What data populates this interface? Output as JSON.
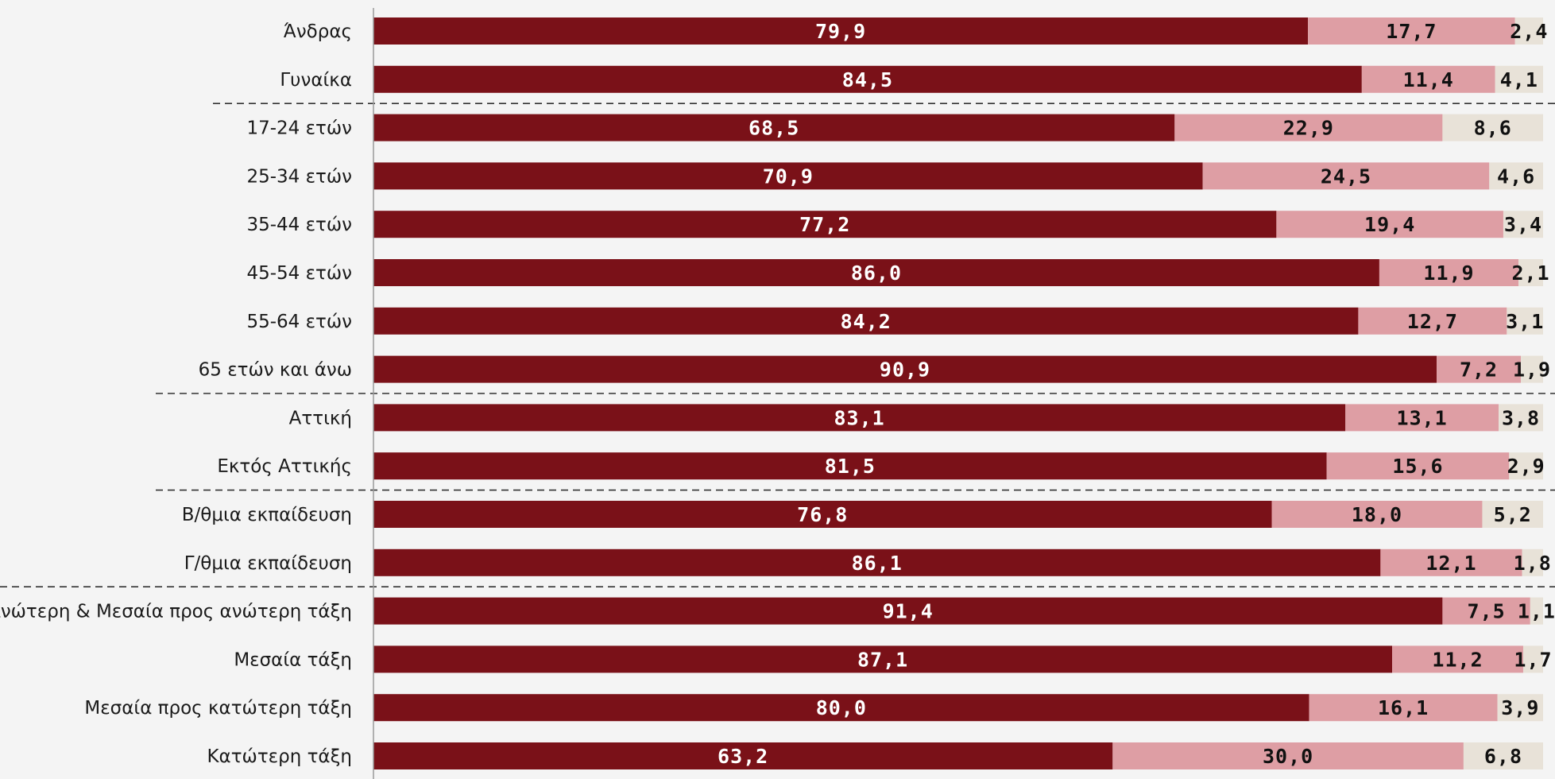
{
  "colors": {
    "background": "#f4f4f4",
    "series_colors": [
      "#7a1118",
      "#de9ea4",
      "#e8e2d8"
    ],
    "label_colors": [
      "#ffffff",
      "#111111",
      "#111111"
    ],
    "axis": "#9a9a9a",
    "separator": "#333333"
  },
  "chart_data": {
    "type": "bar",
    "orientation": "horizontal",
    "stacked": true,
    "xlim": [
      0,
      100
    ],
    "title": "",
    "xlabel": "",
    "ylabel": "",
    "grid": false,
    "legend": "none",
    "categories": [
      "Άνδρας",
      "Γυναίκα",
      "17-24 ετών",
      "25-34 ετών",
      "35-44 ετών",
      "45-54 ετών",
      "55-64 ετών",
      "65 ετών και άνω",
      "Αττική",
      "Εκτός Αττικής",
      "Β/θμια εκπαίδευση",
      "Γ/θμια εκπαίδευση",
      "Ανώτερη & Μεσαία προς ανώτερη τάξη",
      "Μεσαία τάξη",
      "Μεσαία προς κατώτερη τάξη",
      "Κατώτερη τάξη"
    ],
    "series": [
      {
        "values": [
          79.9,
          84.5,
          68.5,
          70.9,
          77.2,
          86.0,
          84.2,
          90.9,
          83.1,
          81.5,
          76.8,
          86.1,
          91.4,
          87.1,
          80.0,
          63.2
        ],
        "labels": [
          "79,9",
          "84,5",
          "68,5",
          "70,9",
          "77,2",
          "86,0",
          "84,2",
          "90,9",
          "83,1",
          "81,5",
          "76,8",
          "86,1",
          "91,4",
          "87,1",
          "80,0",
          "63,2"
        ]
      },
      {
        "values": [
          17.7,
          11.4,
          22.9,
          24.5,
          19.4,
          11.9,
          12.7,
          7.2,
          13.1,
          15.6,
          18.0,
          12.1,
          7.5,
          11.2,
          16.1,
          30.0
        ],
        "labels": [
          "17,7",
          "11,4",
          "22,9",
          "24,5",
          "19,4",
          "11,9",
          "12,7",
          "7,2",
          "13,1",
          "15,6",
          "18,0",
          "12,1",
          "7,5",
          "11,2",
          "16,1",
          "30,0"
        ]
      },
      {
        "values": [
          2.4,
          4.1,
          8.6,
          4.6,
          3.4,
          2.1,
          3.1,
          1.9,
          3.8,
          2.9,
          5.2,
          1.8,
          1.1,
          1.7,
          3.9,
          6.8
        ],
        "labels": [
          "2,4",
          "4,1",
          "8,6",
          "4,6",
          "3,4",
          "2,1",
          "3,1",
          "1,9",
          "3,8",
          "2,9",
          "5,2",
          "1,8",
          "1,1",
          "1,7",
          "3,9",
          "6,8"
        ]
      }
    ],
    "group_separators_after": [
      1,
      7,
      9,
      11
    ]
  }
}
